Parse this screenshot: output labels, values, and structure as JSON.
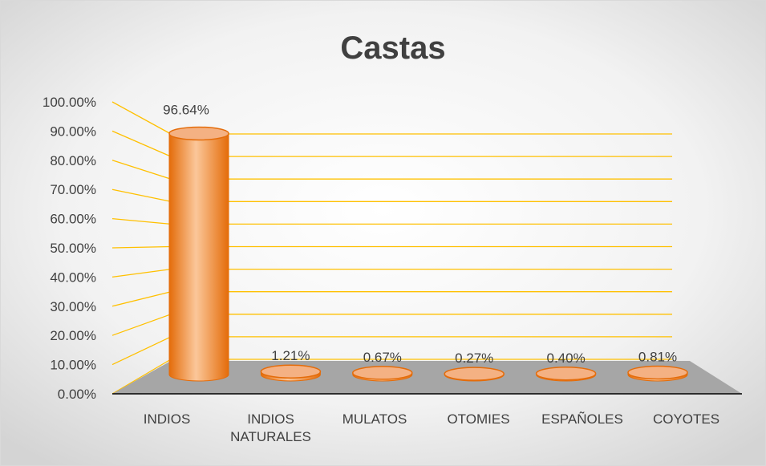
{
  "chart_data": {
    "type": "bar",
    "title": "Castas",
    "categories": [
      "INDIOS",
      "INDIOS NATURALES",
      "MULATOS",
      "OTOMIES",
      "ESPAÑOLES",
      "COYOTES"
    ],
    "values": [
      96.64,
      1.21,
      0.67,
      0.27,
      0.4,
      0.81
    ],
    "value_labels": [
      "96.64%",
      "1.21%",
      "0.67%",
      "0.27%",
      "0.40%",
      "0.81%"
    ],
    "color": "#ed7d31",
    "ylim": [
      0,
      100
    ],
    "yticks": [
      {
        "value": 0,
        "label": "0.00%"
      },
      {
        "value": 10,
        "label": "10.00%"
      },
      {
        "value": 20,
        "label": "20.00%"
      },
      {
        "value": 30,
        "label": "30.00%"
      },
      {
        "value": 40,
        "label": "40.00%"
      },
      {
        "value": 50,
        "label": "50.00%"
      },
      {
        "value": 60,
        "label": "60.00%"
      },
      {
        "value": 70,
        "label": "70.00%"
      },
      {
        "value": 80,
        "label": "80.00%"
      },
      {
        "value": 90,
        "label": "90.00%"
      },
      {
        "value": 100,
        "label": "100.00%"
      }
    ],
    "grid": true
  }
}
